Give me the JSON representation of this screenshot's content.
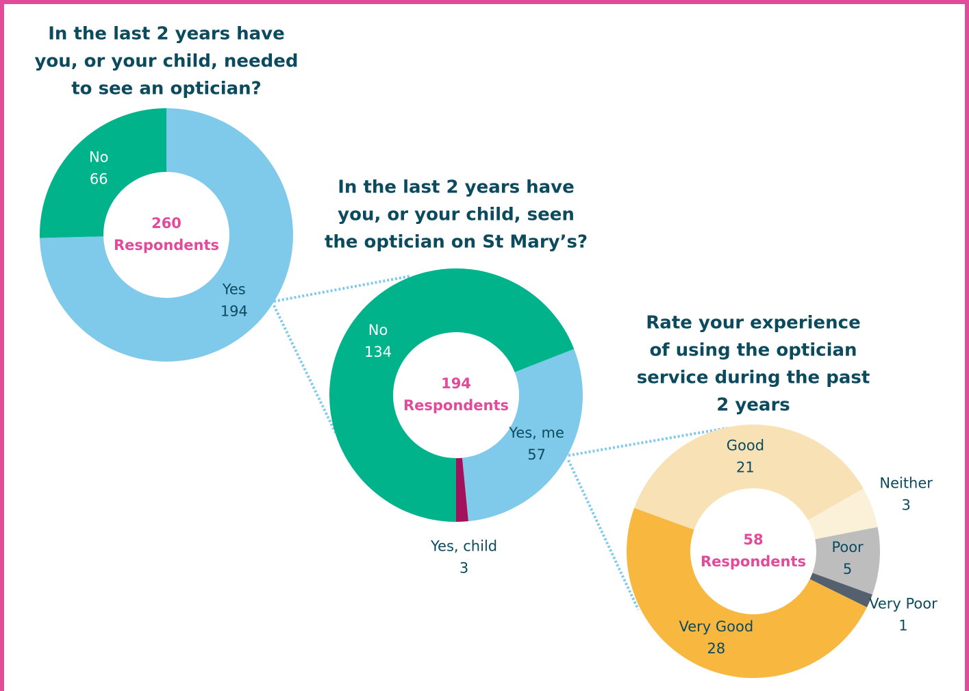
{
  "chart_data": [
    {
      "type": "donut",
      "title": [
        "In the last 2 years have",
        "you, or your child, needed",
        "to see an optician?"
      ],
      "center_value": 260,
      "center_label": "Respondents",
      "categories": [
        "Yes",
        "No"
      ],
      "values": [
        194,
        66
      ],
      "colors": [
        "#7FCAEB",
        "#00B38A"
      ],
      "start_angle": 0
    },
    {
      "type": "donut",
      "title": [
        "In the last 2 years have",
        "you, or your child, seen",
        "the optician on St Mary’s?"
      ],
      "center_value": 194,
      "center_label": "Respondents",
      "categories": [
        "No",
        "Yes, me",
        "Yes, child"
      ],
      "values": [
        134,
        57,
        3
      ],
      "colors": [
        "#00B38A",
        "#7FCAEB",
        "#A3105C"
      ],
      "start_angle": 180
    },
    {
      "type": "donut",
      "title": [
        "Rate your experience",
        "of using the optician",
        "service during the past",
        "2 years"
      ],
      "center_value": 58,
      "center_label": "Respondents",
      "categories": [
        "Good",
        "Neither",
        "Poor",
        "Very Poor",
        "Very Good"
      ],
      "values": [
        21,
        3,
        5,
        1,
        28
      ],
      "colors": [
        "#F7E1B5",
        "#FBF0D8",
        "#BDBDBD",
        "#55606E",
        "#F8B73E"
      ],
      "start_angle": 290
    }
  ]
}
